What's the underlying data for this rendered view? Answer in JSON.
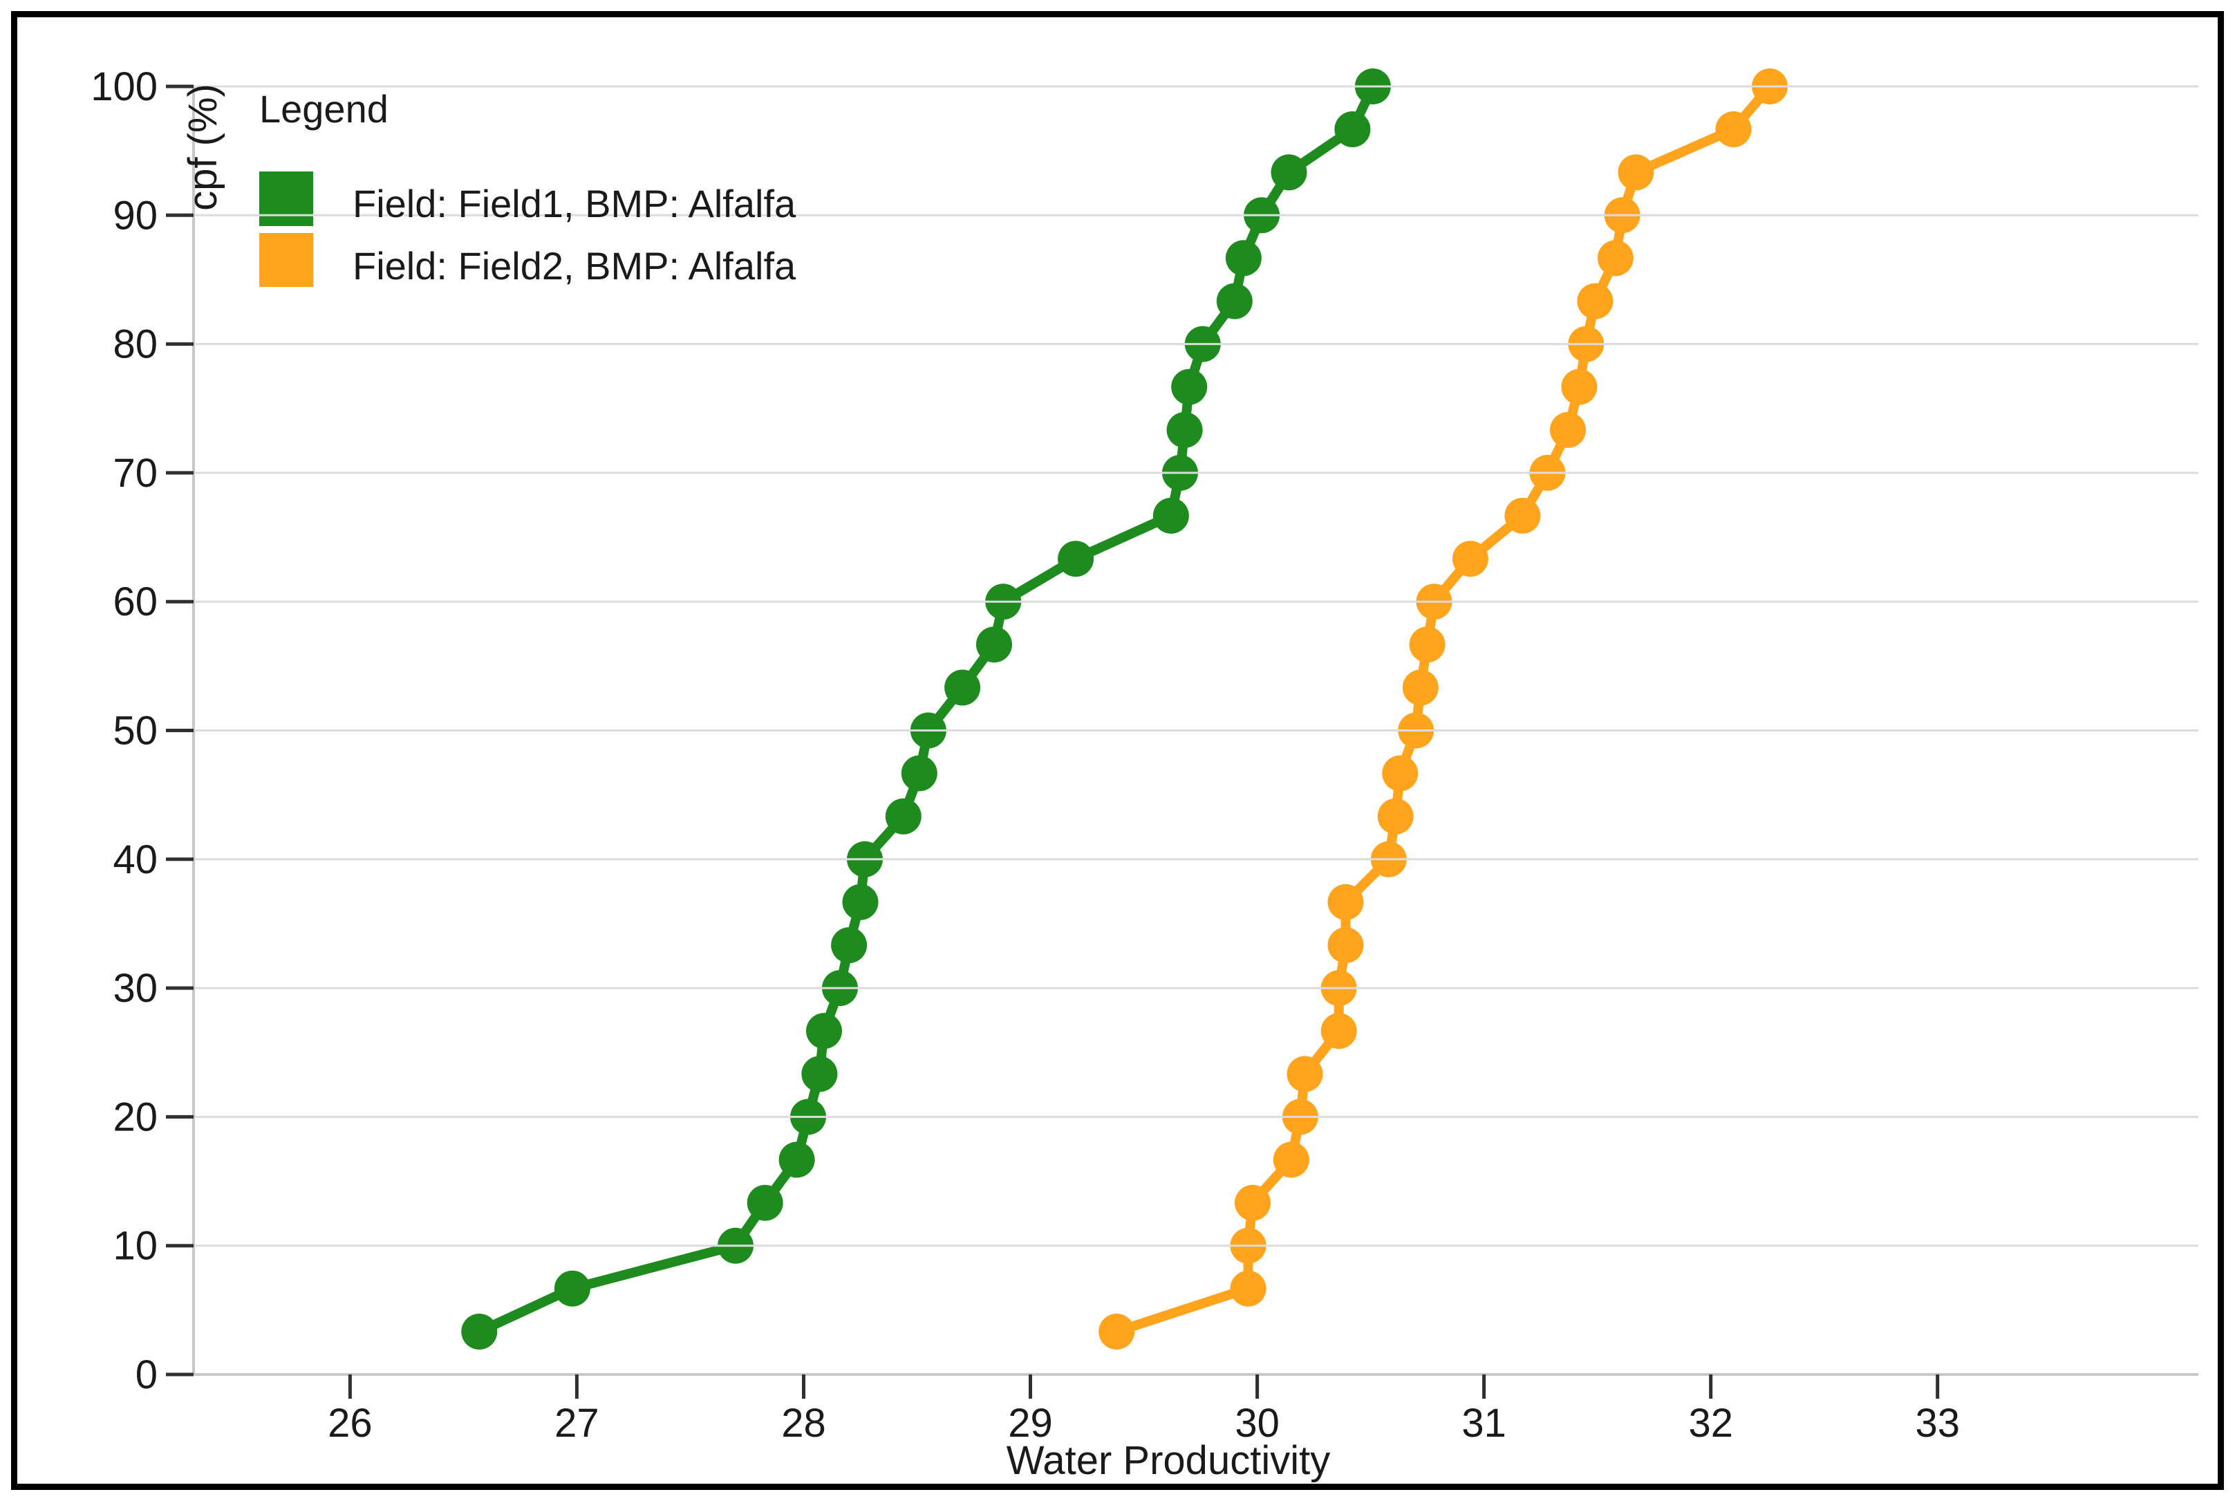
{
  "page": {
    "background_color": "#ffffff",
    "frame_border_color": "#000000"
  },
  "chart_data": {
    "type": "line",
    "title": "",
    "xlabel": "Water Productivity",
    "ylabel": "cpf (%)",
    "legend_title": "Legend",
    "legend_position": "top-left",
    "grid": true,
    "grid_color": "#dcdcdc",
    "axis_color": "#c8c8c8",
    "tick_color": "#303030",
    "xlim": [
      25.31,
      34.15
    ],
    "ylim": [
      0,
      100
    ],
    "x_ticks": [
      26,
      27,
      28,
      29,
      30,
      31,
      32,
      33
    ],
    "y_ticks": [
      0,
      10,
      20,
      30,
      40,
      50,
      60,
      70,
      80,
      90,
      100
    ],
    "cpf_values": [
      3.33,
      6.67,
      10,
      13.33,
      16.67,
      20,
      23.33,
      26.67,
      30,
      33.33,
      36.67,
      40,
      43.33,
      46.67,
      50,
      53.33,
      56.67,
      60,
      63.33,
      66.67,
      70,
      73.33,
      76.67,
      80,
      83.33,
      86.67,
      90,
      93.33,
      96.67,
      100
    ],
    "series": [
      {
        "name": "Field: Field1, BMP: Alfalfa",
        "color": "#1e8b1e",
        "x": [
          26.57,
          26.98,
          27.7,
          27.83,
          27.97,
          28.02,
          28.07,
          28.09,
          28.16,
          28.2,
          28.25,
          28.27,
          28.44,
          28.51,
          28.55,
          28.7,
          28.84,
          28.88,
          29.2,
          29.62,
          29.66,
          29.68,
          29.7,
          29.76,
          29.9,
          29.94,
          30.02,
          30.14,
          30.42,
          30.51
        ],
        "y": [
          3.33,
          6.67,
          10,
          13.33,
          16.67,
          20,
          23.33,
          26.67,
          30,
          33.33,
          36.67,
          40,
          43.33,
          46.67,
          50,
          53.33,
          56.67,
          60,
          63.33,
          66.67,
          70,
          73.33,
          76.67,
          80,
          83.33,
          86.67,
          90,
          93.33,
          96.67,
          100
        ]
      },
      {
        "name": "Field: Field2, BMP: Alfalfa",
        "color": "#ffa41c",
        "x": [
          29.38,
          29.96,
          29.96,
          29.98,
          30.15,
          30.19,
          30.21,
          30.36,
          30.36,
          30.39,
          30.39,
          30.58,
          30.61,
          30.63,
          30.7,
          30.72,
          30.75,
          30.78,
          30.94,
          31.17,
          31.28,
          31.37,
          31.42,
          31.45,
          31.49,
          31.58,
          31.61,
          31.67,
          32.1,
          32.26
        ],
        "y": [
          3.33,
          6.67,
          10,
          13.33,
          16.67,
          20,
          23.33,
          26.67,
          30,
          33.33,
          36.67,
          40,
          43.33,
          46.67,
          50,
          53.33,
          56.67,
          60,
          63.33,
          66.67,
          70,
          73.33,
          76.67,
          80,
          83.33,
          86.67,
          90,
          93.33,
          96.67,
          100
        ]
      }
    ]
  }
}
